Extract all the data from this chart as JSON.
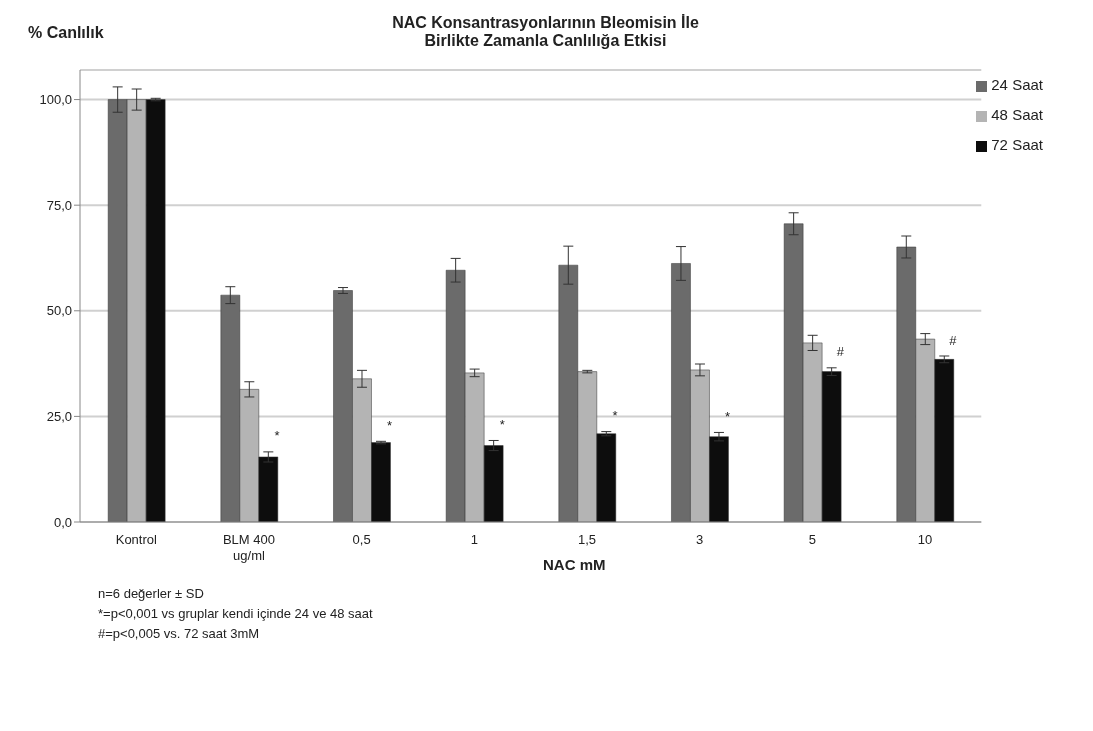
{
  "chart_data": {
    "type": "bar",
    "title": "NAC Konsantrasyonlarının Bleomisin İle\nBirlikte Zamanla Canlılığa Etkisi",
    "ylabel": "% Canlılık",
    "xlabel": "NAC mM",
    "categories": [
      "Kontrol",
      "BLM 400 ug/ml",
      "0,5",
      "1",
      "1,5",
      "3",
      "5",
      "10"
    ],
    "series": [
      {
        "name": "24 Saat",
        "color": "#6b6b6b",
        "values": [
          100,
          53.7,
          54.8,
          59.6,
          60.8,
          61.2,
          70.6,
          65.1
        ],
        "errors": [
          3,
          2,
          0.7,
          2.8,
          4.5,
          4,
          2.6,
          2.6
        ]
      },
      {
        "name": "48 Saat",
        "color": "#b4b4b4",
        "values": [
          100,
          31.4,
          33.9,
          35.3,
          35.6,
          36.0,
          42.4,
          43.3
        ],
        "errors": [
          2.5,
          1.8,
          2,
          0.9,
          0.3,
          1.4,
          1.8,
          1.3
        ]
      },
      {
        "name": "72 Saat",
        "color": "#0d0d0d",
        "values": [
          100,
          15.4,
          18.8,
          18.1,
          20.9,
          20.2,
          35.6,
          38.5
        ],
        "errors": [
          0.3,
          1.2,
          0.3,
          1.2,
          0.5,
          1,
          0.9,
          0.8
        ]
      }
    ],
    "ylim": [
      0,
      107
    ],
    "yticks": [
      {
        "value": 0,
        "label": "0,0"
      },
      {
        "value": 25,
        "label": "25,0"
      },
      {
        "value": 50,
        "label": "50,0"
      },
      {
        "value": 75,
        "label": "75,0"
      },
      {
        "value": 100,
        "label": "100,0"
      }
    ],
    "grid": "y",
    "legend": "top right",
    "annotations": [
      "*",
      "*",
      "*",
      "*",
      "*",
      "#",
      "#",
      "n=6  değerler ± SD",
      "*=p<0,001 vs gruplar kendi içinde  24 ve 48 saat",
      "#=p<0,005 vs. 72 saat 3mM"
    ]
  }
}
